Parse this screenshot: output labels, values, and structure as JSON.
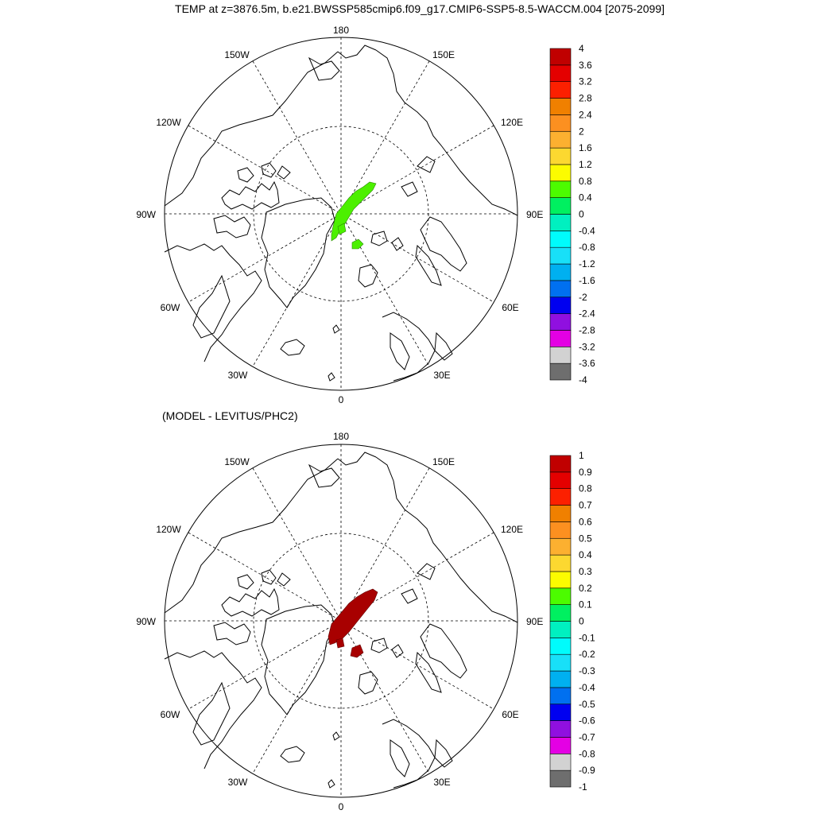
{
  "title": "TEMP at z=3876.5m, b.e21.BWSSP585cmip6.f09_g17.CMIP6-SSP5-8.5-WACCM.004 [2075-2099]",
  "subtitle": "(MODEL - LEVITUS/PHC2)",
  "lon_labels": {
    "top": "180",
    "bottom": "0",
    "left": "90W",
    "right": "90E",
    "ul1": "150W",
    "ul2": "120W",
    "ur1": "150E",
    "ur2": "120E",
    "ll1": "60W",
    "ll2": "30W",
    "lr1": "60E",
    "lr2": "30E"
  },
  "colors": {
    "anomaly_top": "#4cf000",
    "anomaly_bottom": "#a80000",
    "palette": [
      "#6e6e6e",
      "#d2d2d2",
      "#e400e4",
      "#9010e0",
      "#0000f0",
      "#0070f0",
      "#00b0f0",
      "#18e0f8",
      "#00fcfc",
      "#00f0c0",
      "#00f060",
      "#4cfc00",
      "#fcfc00",
      "#fcd830",
      "#fcb030",
      "#fc9020",
      "#f08000",
      "#fc2000",
      "#e40000",
      "#c00000"
    ]
  },
  "colorbar_top": {
    "labels": [
      "4",
      "3.6",
      "3.2",
      "2.8",
      "2.4",
      "2",
      "1.6",
      "1.2",
      "0.8",
      "0.4",
      "0",
      "-0.4",
      "-0.8",
      "-1.2",
      "-1.6",
      "-2",
      "-2.4",
      "-2.8",
      "-3.2",
      "-3.6",
      "-4"
    ]
  },
  "colorbar_bottom": {
    "labels": [
      "1",
      "0.9",
      "0.8",
      "0.7",
      "0.6",
      "0.5",
      "0.4",
      "0.3",
      "0.2",
      "0.1",
      "0",
      "-0.1",
      "-0.2",
      "-0.3",
      "-0.4",
      "-0.5",
      "-0.6",
      "-0.7",
      "-0.8",
      "-0.9",
      "-1"
    ]
  }
}
